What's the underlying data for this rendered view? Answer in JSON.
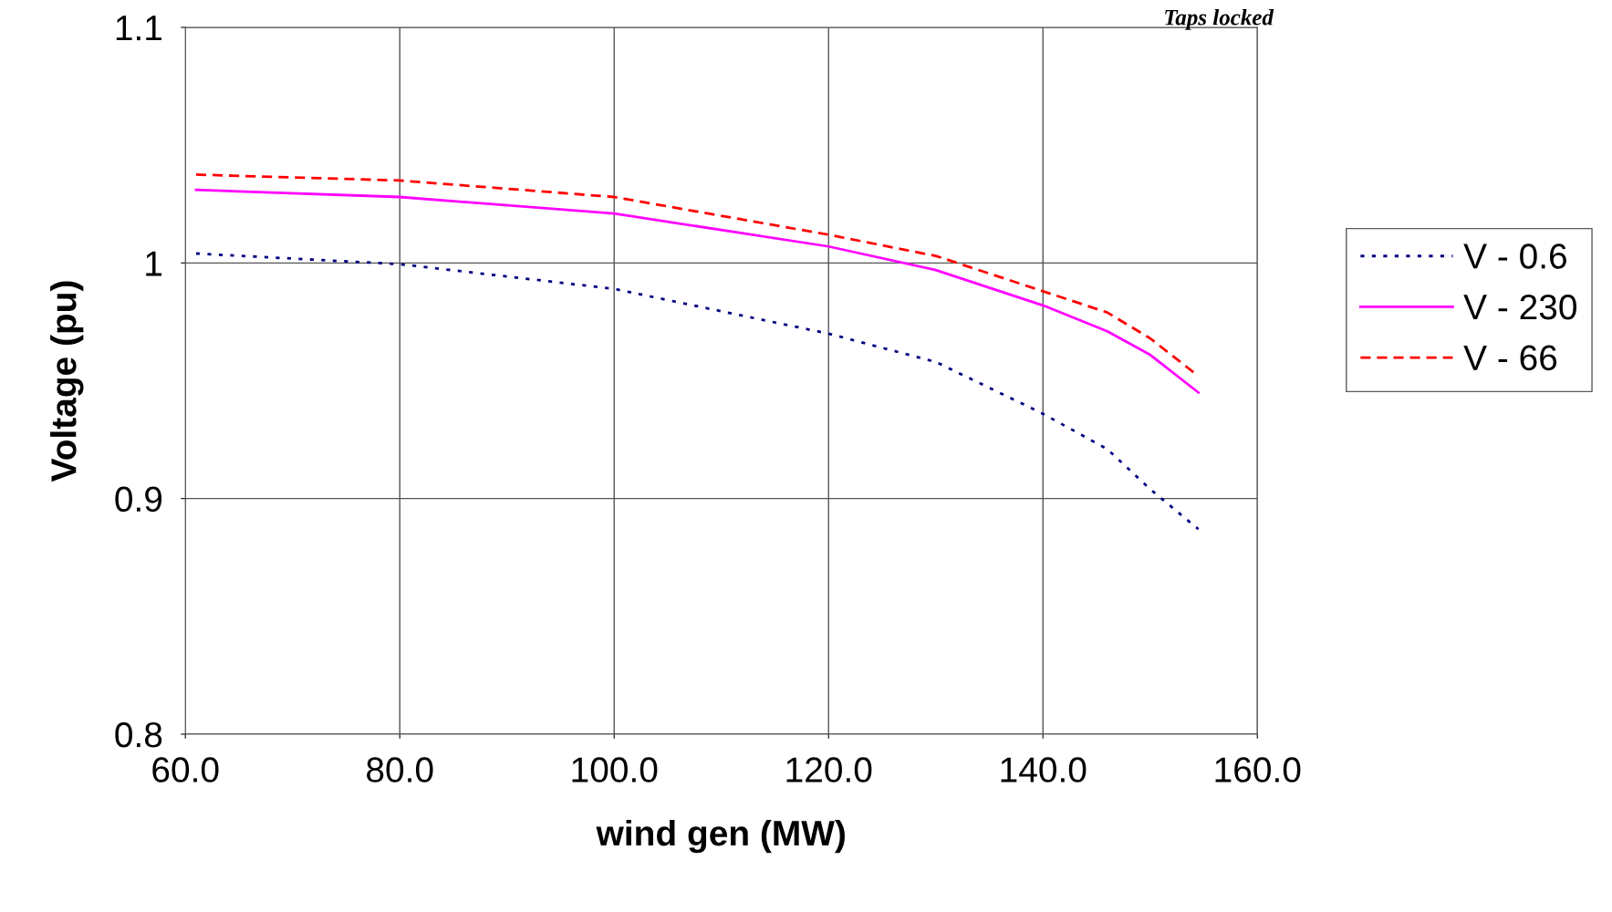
{
  "chart_data": {
    "type": "line",
    "xlabel": "wind gen (MW)",
    "ylabel": "Voltage (pu)",
    "annotations": [
      "Taps locked"
    ],
    "x": [
      61,
      80,
      100,
      120,
      130,
      140,
      146,
      150,
      154.5
    ],
    "series": [
      {
        "name": "V - 0.6",
        "color": "#000080",
        "line_style": "dotted",
        "values": [
          1.004,
          0.9995,
          0.989,
          0.97,
          0.958,
          0.936,
          0.921,
          0.904,
          0.887
        ]
      },
      {
        "name": "V - 230",
        "color": "#ff00ff",
        "line_style": "solid",
        "values": [
          1.031,
          1.028,
          1.021,
          1.007,
          0.997,
          0.982,
          0.971,
          0.961,
          0.945
        ]
      },
      {
        "name": "V - 66",
        "color": "#ff0000",
        "line_style": "dashed",
        "values": [
          1.0375,
          1.035,
          1.028,
          1.012,
          1.003,
          0.988,
          0.979,
          0.968,
          0.952
        ]
      }
    ],
    "xlim": [
      60,
      160
    ],
    "xticks": [
      {
        "value": 60,
        "label": "60.0"
      },
      {
        "value": 80,
        "label": "80.0"
      },
      {
        "value": 100,
        "label": "100.0"
      },
      {
        "value": 120,
        "label": "120.0"
      },
      {
        "value": 140,
        "label": "140.0"
      },
      {
        "value": 160,
        "label": "160.0"
      }
    ],
    "ylim": [
      0.8,
      1.1
    ],
    "yticks": [
      0.8,
      0.9,
      1,
      1.1
    ],
    "grid": true,
    "legend": "right",
    "marker": "none"
  }
}
